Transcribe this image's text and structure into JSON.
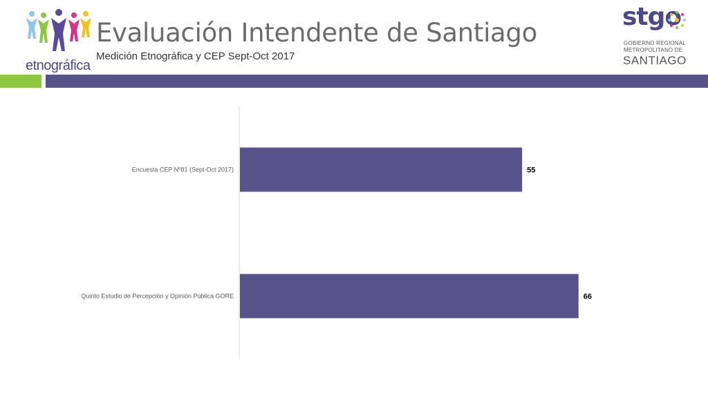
{
  "header": {
    "title": "Evaluación Intendente de Santiago",
    "subtitle": "Medición Etnográfica y CEP Sept-Oct 2017",
    "logo_left_text": "etnográfica",
    "logo_right": {
      "brand": "stgo",
      "line1": "GOBIERNO REGIONAL",
      "line2": "METROPOLITANO DE",
      "line3": "SANTIAGO"
    }
  },
  "colors": {
    "accent_green": "#8dc63f",
    "accent_purple": "#575289",
    "bar_fill": "#575289"
  },
  "chart_data": {
    "type": "bar",
    "orientation": "horizontal",
    "categories": [
      "Encuesta CEP Nº81 (Sept-Oct 2017)",
      "Quinto Estudio de Percepción y Opinión Pública GORE"
    ],
    "values": [
      55,
      66
    ],
    "data_labels": [
      "55",
      "66"
    ],
    "xlim": [
      0,
      70
    ],
    "grid": false,
    "legend": "none"
  }
}
